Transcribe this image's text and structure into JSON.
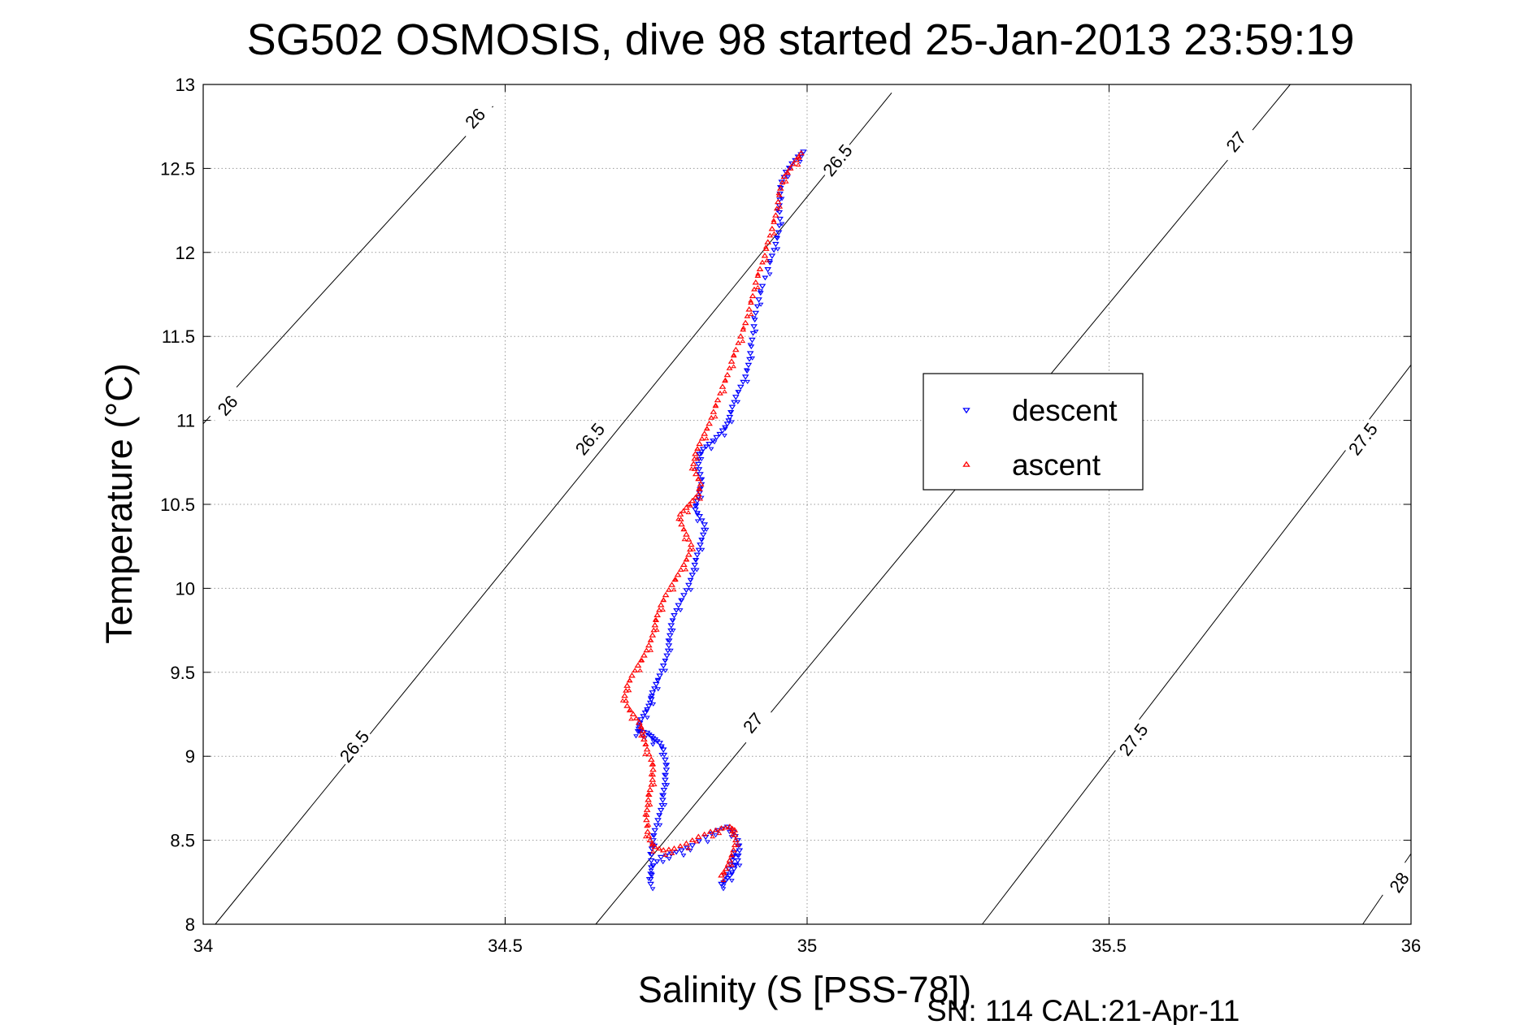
{
  "chart_data": {
    "type": "scatter",
    "title": "SG502 OSMOSIS, dive 98 started 25-Jan-2013 23:59:19",
    "xlabel": "Salinity (S [PSS-78])",
    "ylabel": "Temperature (°C)",
    "footer": "SN: 114  CAL:21-Apr-11",
    "xlim": [
      34,
      36
    ],
    "ylim": [
      8,
      13
    ],
    "xticks": [
      34,
      34.5,
      35,
      35.5,
      36
    ],
    "xtick_labels": [
      "34",
      "34.5",
      "35",
      "35.5",
      "36"
    ],
    "yticks": [
      8,
      8.5,
      9,
      9.5,
      10,
      10.5,
      11,
      11.5,
      12,
      12.5,
      13
    ],
    "ytick_labels": [
      "8",
      "8.5",
      "9",
      "9.5",
      "10",
      "10.5",
      "11",
      "11.5",
      "12",
      "12.5",
      "13"
    ],
    "grid": true,
    "legend_position": "right",
    "density_contours": [
      {
        "level": "26",
        "points": [
          [
            34.0,
            10.98
          ],
          [
            34.48,
            12.87
          ]
        ],
        "labels": [
          {
            "text": "26",
            "x": 34.04,
            "y": 11.09
          },
          {
            "text": "26",
            "x": 34.45,
            "y": 12.8
          }
        ]
      },
      {
        "level": "26.5",
        "points": [
          [
            34.02,
            8.0
          ],
          [
            35.14,
            12.95
          ]
        ],
        "labels": [
          {
            "text": "26.5",
            "x": 34.25,
            "y": 9.06
          },
          {
            "text": "26.5",
            "x": 34.64,
            "y": 10.89
          },
          {
            "text": "26.5",
            "x": 35.05,
            "y": 12.55
          }
        ]
      },
      {
        "level": "27",
        "points": [
          [
            34.65,
            8.0
          ],
          [
            35.8,
            13.0
          ]
        ],
        "labels": [
          {
            "text": "27",
            "x": 34.91,
            "y": 9.2
          },
          {
            "text": "27",
            "x": 35.71,
            "y": 12.66
          }
        ]
      },
      {
        "level": "27.5",
        "points": [
          [
            35.29,
            8.0
          ],
          [
            36.0,
            11.33
          ]
        ],
        "labels": [
          {
            "text": "27.5",
            "x": 35.54,
            "y": 9.1
          },
          {
            "text": "27.5",
            "x": 35.92,
            "y": 10.89
          }
        ]
      },
      {
        "level": "28",
        "points": [
          [
            35.92,
            8.0
          ],
          [
            36.0,
            8.42
          ]
        ],
        "labels": [
          {
            "text": "28",
            "x": 35.98,
            "y": 8.25
          }
        ]
      }
    ],
    "series": [
      {
        "name": "descent",
        "color": "#0000ff",
        "marker": "triangle-down",
        "x": [
          34.994,
          34.985,
          34.975,
          34.965,
          34.958,
          34.955,
          34.954,
          34.955,
          34.953,
          34.948,
          34.942,
          34.935,
          34.926,
          34.92,
          34.915,
          34.912,
          34.909,
          34.906,
          34.903,
          34.898,
          34.89,
          34.882,
          34.876,
          34.872,
          34.868,
          34.86,
          34.85,
          34.838,
          34.828,
          34.822,
          34.82,
          34.823,
          34.825,
          34.822,
          34.818,
          34.815,
          34.822,
          34.83,
          34.828,
          34.823,
          34.818,
          34.814,
          34.81,
          34.804,
          34.796,
          34.787,
          34.78,
          34.775,
          34.773,
          34.771,
          34.768,
          34.762,
          34.756,
          34.75,
          34.744,
          34.742,
          34.738,
          34.732,
          34.725,
          34.722,
          34.72,
          34.724,
          34.735,
          34.742,
          34.748,
          34.756,
          34.762,
          34.765,
          34.767,
          34.765,
          34.763,
          34.761,
          34.758,
          34.753,
          34.748,
          34.745,
          34.743,
          34.742,
          34.741,
          34.741,
          34.745,
          34.758,
          34.775,
          34.792,
          34.81,
          34.832,
          34.852,
          34.868,
          34.878,
          34.885,
          34.888,
          34.885,
          34.879,
          34.872,
          34.865,
          34.858,
          34.87,
          34.876,
          34.88
        ],
        "y": [
          12.6,
          12.57,
          12.53,
          12.48,
          12.42,
          12.35,
          12.28,
          12.2,
          12.12,
          12.05,
          11.98,
          11.9,
          11.8,
          11.72,
          11.64,
          11.56,
          11.48,
          11.4,
          11.33,
          11.26,
          11.2,
          11.14,
          11.08,
          11.02,
          10.98,
          10.94,
          10.9,
          10.86,
          10.83,
          10.8,
          10.74,
          10.68,
          10.62,
          10.57,
          10.52,
          10.47,
          10.43,
          10.38,
          10.32,
          10.26,
          10.2,
          10.14,
          10.08,
          10.02,
          9.96,
          9.9,
          9.84,
          9.78,
          9.72,
          9.66,
          9.6,
          9.54,
          9.48,
          9.43,
          9.38,
          9.34,
          9.3,
          9.26,
          9.22,
          9.18,
          9.15,
          9.15,
          9.14,
          9.12,
          9.1,
          9.08,
          9.04,
          8.98,
          8.92,
          8.86,
          8.8,
          8.74,
          8.68,
          8.62,
          8.56,
          8.5,
          8.45,
          8.38,
          8.3,
          8.24,
          8.35,
          8.4,
          8.42,
          8.44,
          8.47,
          8.52,
          8.56,
          8.58,
          8.55,
          8.5,
          8.44,
          8.38,
          8.33,
          8.29,
          8.26,
          8.24,
          8.33,
          8.38,
          8.43
        ]
      },
      {
        "name": "ascent",
        "color": "#ff0000",
        "marker": "triangle-up",
        "x": [
          34.99,
          34.982,
          34.972,
          34.962,
          34.956,
          34.952,
          34.948,
          34.942,
          34.935,
          34.93,
          34.922,
          34.915,
          34.91,
          34.904,
          34.898,
          34.89,
          34.882,
          34.875,
          34.868,
          34.86,
          34.852,
          34.845,
          34.838,
          34.83,
          34.822,
          34.815,
          34.812,
          34.816,
          34.824,
          34.82,
          34.81,
          34.8,
          34.79,
          34.792,
          34.8,
          34.808,
          34.804,
          34.796,
          34.786,
          34.776,
          34.766,
          34.758,
          34.752,
          34.748,
          34.744,
          34.738,
          34.73,
          34.72,
          34.71,
          34.702,
          34.698,
          34.702,
          34.712,
          34.722,
          34.728,
          34.73,
          34.735,
          34.742,
          34.745,
          34.744,
          34.74,
          34.737,
          34.735,
          34.734,
          34.736,
          34.74,
          34.748,
          34.762,
          34.78,
          34.8,
          34.82,
          34.84,
          34.858,
          34.872,
          34.88,
          34.882,
          34.878,
          34.872,
          34.866,
          34.858
        ],
        "y": [
          12.59,
          12.55,
          12.5,
          12.45,
          12.38,
          12.3,
          12.22,
          12.14,
          12.06,
          11.98,
          11.9,
          11.82,
          11.74,
          11.66,
          11.58,
          11.5,
          11.42,
          11.35,
          11.27,
          11.2,
          11.12,
          11.05,
          10.98,
          10.92,
          10.86,
          10.8,
          10.74,
          10.68,
          10.62,
          10.56,
          10.52,
          10.48,
          10.44,
          10.38,
          10.32,
          10.26,
          10.2,
          10.14,
          10.08,
          10.02,
          9.96,
          9.9,
          9.84,
          9.78,
          9.72,
          9.66,
          9.6,
          9.54,
          9.48,
          9.42,
          9.36,
          9.3,
          9.25,
          9.2,
          9.15,
          9.1,
          9.04,
          8.98,
          8.92,
          8.86,
          8.8,
          8.74,
          8.68,
          8.62,
          8.55,
          8.5,
          8.46,
          8.44,
          8.45,
          8.48,
          8.52,
          8.55,
          8.57,
          8.58,
          8.56,
          8.5,
          8.44,
          8.38,
          8.33,
          8.29
        ]
      }
    ]
  }
}
